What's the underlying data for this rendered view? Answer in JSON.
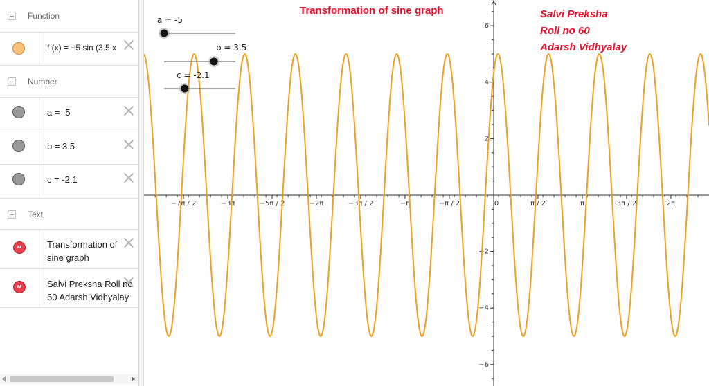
{
  "algebra": {
    "categories": {
      "function": "Function",
      "number": "Number",
      "text": "Text"
    },
    "function_row": {
      "definition": "f (x)  =  −5  sin (3.5 x"
    },
    "number_rows": [
      {
        "definition": "a  =  -5"
      },
      {
        "definition": "b  =  3.5"
      },
      {
        "definition": "c  =  -2.1"
      }
    ],
    "text_rows": [
      {
        "line1": "Transformation of",
        "line2": "sine graph"
      },
      {
        "line1": "Salvi Preksha Roll no",
        "line2": "60 Adarsh Vidhyalay"
      }
    ],
    "quote_glyph": "”"
  },
  "graphics": {
    "title": "Transformation of sine graph",
    "author_lines": [
      "Salvi Preksha",
      "Roll no 60",
      "Adarsh Vidhyalay"
    ],
    "sliders": [
      {
        "label": "a = -5",
        "value": -5,
        "min": -5,
        "max": 5
      },
      {
        "label": "b = 3.5",
        "value": 3.5,
        "min": 0,
        "max": 5
      },
      {
        "label": "c = -2.1",
        "value": -2.1,
        "min": -5,
        "max": 5
      }
    ],
    "function": {
      "a": -5,
      "b": 3.5,
      "c": -2.1
    },
    "x_tick_labels": [
      {
        "value": -10.9956,
        "label": "−7π / 2"
      },
      {
        "value": -9.4248,
        "label": "−3π"
      },
      {
        "value": -7.854,
        "label": "−5π / 2"
      },
      {
        "value": -6.2832,
        "label": "−2π"
      },
      {
        "value": -4.7124,
        "label": "−3π / 2"
      },
      {
        "value": -3.1416,
        "label": "−π"
      },
      {
        "value": -1.5708,
        "label": "−π / 2"
      },
      {
        "value": 0,
        "label": "0"
      },
      {
        "value": 1.5708,
        "label": "π / 2"
      },
      {
        "value": 3.1416,
        "label": "π"
      },
      {
        "value": 4.7124,
        "label": "3π / 2"
      },
      {
        "value": 6.2832,
        "label": "2π"
      }
    ],
    "y_tick_labels": [
      {
        "value": 6,
        "label": "6"
      },
      {
        "value": 4,
        "label": "4"
      },
      {
        "value": 2,
        "label": "2"
      },
      {
        "value": -2,
        "label": "−2"
      },
      {
        "value": -4,
        "label": "−4"
      },
      {
        "value": -6,
        "label": "−6"
      }
    ],
    "colors": {
      "curve": "#f29e1f",
      "text": "#e8102a",
      "marble_function": "#f8c07a",
      "marble_number": "#999999"
    }
  }
}
